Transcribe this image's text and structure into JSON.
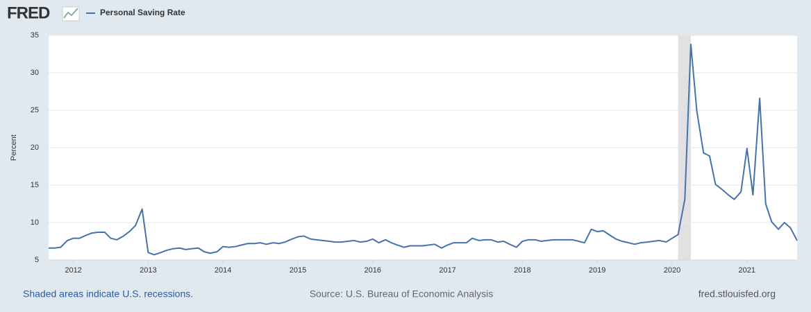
{
  "header": {
    "logo": "FRED"
  },
  "chart_data": {
    "type": "line",
    "series": [
      {
        "name": "Personal Saving Rate",
        "color": "#4572a7",
        "values": [
          6.6,
          6.6,
          6.7,
          7.6,
          7.9,
          7.9,
          8.3,
          8.6,
          8.7,
          8.7,
          7.9,
          7.7,
          8.2,
          8.8,
          9.6,
          11.8,
          6.0,
          5.7,
          6.0,
          6.3,
          6.5,
          6.6,
          6.4,
          6.5,
          6.6,
          6.1,
          5.9,
          6.1,
          6.8,
          6.7,
          6.8,
          7.0,
          7.2,
          7.2,
          7.3,
          7.1,
          7.3,
          7.2,
          7.4,
          7.8,
          8.1,
          8.2,
          7.8,
          7.7,
          7.6,
          7.5,
          7.4,
          7.4,
          7.5,
          7.6,
          7.4,
          7.5,
          7.8,
          7.3,
          7.7,
          7.3,
          7.0,
          6.7,
          6.9,
          6.9,
          6.9,
          7.0,
          7.1,
          6.6,
          7.0,
          7.3,
          7.3,
          7.3,
          7.9,
          7.6,
          7.7,
          7.7,
          7.4,
          7.5,
          7.1,
          6.7,
          7.5,
          7.7,
          7.7,
          7.5,
          7.6,
          7.7,
          7.7,
          7.7,
          7.7,
          7.5,
          7.3,
          9.1,
          8.8,
          8.9,
          8.3,
          7.8,
          7.5,
          7.3,
          7.1,
          7.3,
          7.4,
          7.5,
          7.6,
          7.4,
          7.9,
          8.4,
          13.1,
          33.8,
          24.9,
          19.3,
          18.9,
          15.1,
          14.4,
          13.7,
          13.1,
          14.1,
          19.9,
          13.7,
          26.6,
          12.5,
          10.1,
          9.1,
          10.0,
          9.3,
          7.6
        ]
      }
    ],
    "x": [
      2011.67,
      2011.75,
      2011.83,
      2011.92,
      2012,
      2012.08,
      2012.17,
      2012.25,
      2012.33,
      2012.42,
      2012.5,
      2012.58,
      2012.67,
      2012.75,
      2012.83,
      2012.92,
      2013,
      2013.08,
      2013.17,
      2013.25,
      2013.33,
      2013.42,
      2013.5,
      2013.58,
      2013.67,
      2013.75,
      2013.83,
      2013.92,
      2014,
      2014.08,
      2014.17,
      2014.25,
      2014.33,
      2014.42,
      2014.5,
      2014.58,
      2014.67,
      2014.75,
      2014.83,
      2014.92,
      2015,
      2015.08,
      2015.17,
      2015.25,
      2015.33,
      2015.42,
      2015.5,
      2015.58,
      2015.67,
      2015.75,
      2015.83,
      2015.92,
      2016,
      2016.08,
      2016.17,
      2016.25,
      2016.33,
      2016.42,
      2016.5,
      2016.58,
      2016.67,
      2016.75,
      2016.83,
      2016.92,
      2017,
      2017.08,
      2017.17,
      2017.25,
      2017.33,
      2017.42,
      2017.5,
      2017.58,
      2017.67,
      2017.75,
      2017.83,
      2017.92,
      2018,
      2018.08,
      2018.17,
      2018.25,
      2018.33,
      2018.42,
      2018.5,
      2018.58,
      2018.67,
      2018.75,
      2018.83,
      2018.92,
      2019,
      2019.08,
      2019.17,
      2019.25,
      2019.33,
      2019.42,
      2019.5,
      2019.58,
      2019.67,
      2019.75,
      2019.83,
      2019.92,
      2020,
      2020.08,
      2020.17,
      2020.25,
      2020.33,
      2020.42,
      2020.5,
      2020.58,
      2020.67,
      2020.75,
      2020.83,
      2020.92,
      2021,
      2021.08,
      2021.17,
      2021.25,
      2021.33,
      2021.42,
      2021.5,
      2021.58,
      2021.67
    ],
    "xlim": [
      2011.67,
      2021.67
    ],
    "xticks": [
      2012,
      2013,
      2014,
      2015,
      2016,
      2017,
      2018,
      2019,
      2020,
      2021
    ],
    "ylim": [
      5,
      35
    ],
    "yticks": [
      5,
      10,
      15,
      20,
      25,
      30,
      35
    ],
    "ylabel": "Percent",
    "grid": true,
    "recessions": [
      {
        "start": 2020.08,
        "end": 2020.25
      }
    ]
  },
  "footer": {
    "note": "Shaded areas indicate U.S. recessions.",
    "source": "Source: U.S. Bureau of Economic Analysis",
    "site": "fred.stlouisfed.org"
  }
}
